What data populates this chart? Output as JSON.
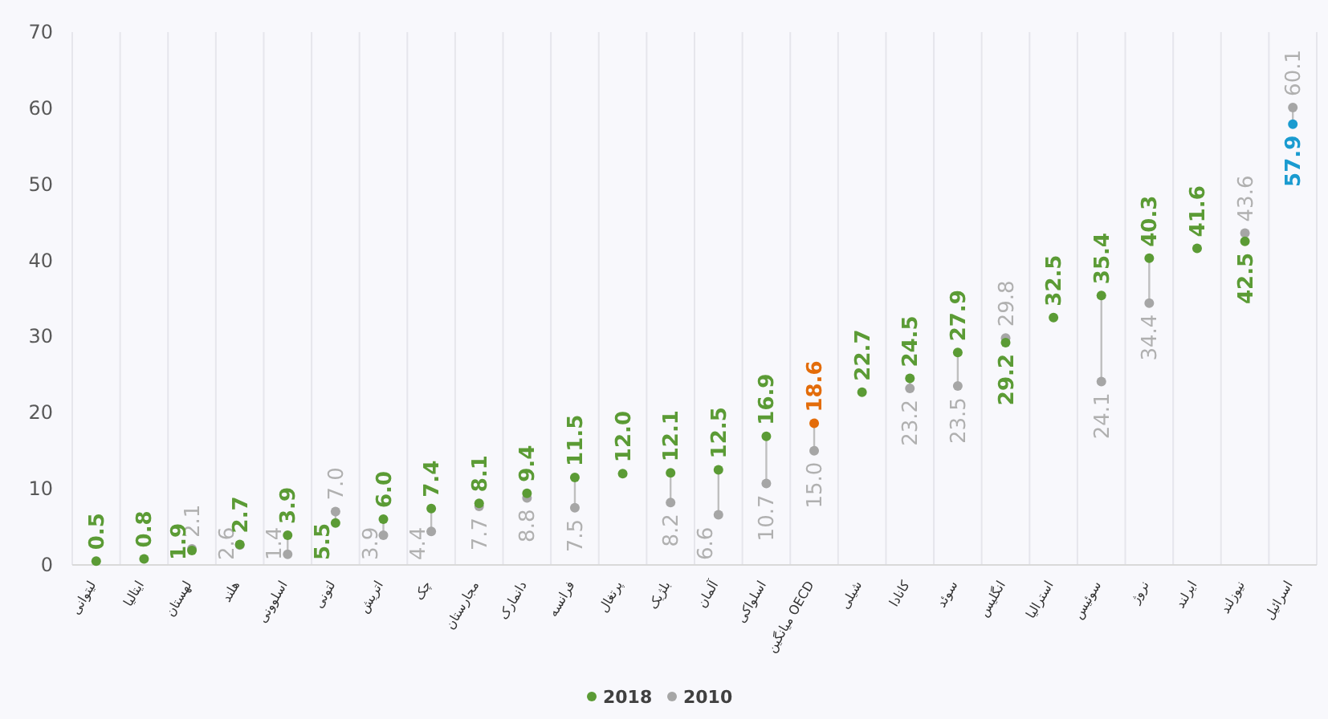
{
  "chart_data": {
    "type": "scatter",
    "categories": [
      "لیتوانی",
      "ایتالیا",
      "لهستان",
      "هلند",
      "اسلوونی",
      "لتونی",
      "اتریش",
      "چک",
      "مجارستان",
      "دانمارک",
      "فرانسه",
      "پرتغال",
      "بلژیک",
      "آلمان",
      "اسلواکی",
      "میانگین OECD",
      "شیلی",
      "کانادا",
      "سوئد",
      "انگلیس",
      "استرالیا",
      "سوئیس",
      "نروژ",
      "ایرلند",
      "نیوزلند",
      "اسرائیل"
    ],
    "series": [
      {
        "name": "2010",
        "type": "scatter",
        "color": "#a6a6a6",
        "value_labels": [
          null,
          null,
          "2.1",
          "2.6",
          "1.4",
          "7.0",
          "3.9",
          "4.4",
          "7.7",
          "8.8",
          "7.5",
          null,
          "8.2",
          "6.6",
          "10.7",
          "15.0",
          null,
          "23.2",
          "23.5",
          "29.8",
          null,
          "24.1",
          "34.4",
          null,
          "43.6",
          "60.1"
        ],
        "values": [
          null,
          null,
          2.1,
          2.6,
          1.4,
          7.0,
          3.9,
          4.4,
          7.7,
          8.8,
          7.5,
          null,
          8.2,
          6.6,
          10.7,
          15.0,
          null,
          23.2,
          23.5,
          29.8,
          null,
          24.1,
          34.4,
          null,
          43.6,
          60.1
        ]
      },
      {
        "name": "2018",
        "type": "scatter",
        "color": "#5b9b35",
        "colors": [
          "#5b9b35",
          "#5b9b35",
          "#5b9b35",
          "#5b9b35",
          "#5b9b35",
          "#5b9b35",
          "#5b9b35",
          "#5b9b35",
          "#5b9b35",
          "#5b9b35",
          "#5b9b35",
          "#5b9b35",
          "#5b9b35",
          "#5b9b35",
          "#5b9b35",
          "#e36c0a",
          "#5b9b35",
          "#5b9b35",
          "#5b9b35",
          "#5b9b35",
          "#5b9b35",
          "#5b9b35",
          "#5b9b35",
          "#5b9b35",
          "#5b9b35",
          "#1a9bd0"
        ],
        "value_labels": [
          "0.5",
          "0.8",
          "1.9",
          "2.7",
          "3.9",
          "5.5",
          "6.0",
          "7.4",
          "8.1",
          "9.4",
          "11.5",
          "12.0",
          "12.1",
          "12.5",
          "16.9",
          "18.6",
          "22.7",
          "24.5",
          "27.9",
          "29.2",
          "32.5",
          "35.4",
          "40.3",
          "41.6",
          "42.5",
          "57.9"
        ],
        "values": [
          0.5,
          0.8,
          1.9,
          2.7,
          3.9,
          5.5,
          6.0,
          7.4,
          8.1,
          9.4,
          11.5,
          12.0,
          12.1,
          12.5,
          16.9,
          18.6,
          22.7,
          24.5,
          27.9,
          29.2,
          32.5,
          35.4,
          40.3,
          41.6,
          42.5,
          57.9
        ]
      }
    ],
    "ylim": [
      0,
      70
    ],
    "yticks": [
      0,
      10,
      20,
      30,
      40,
      50,
      60,
      70
    ],
    "grid": "x",
    "marker": "circle",
    "legend": "bottom"
  }
}
